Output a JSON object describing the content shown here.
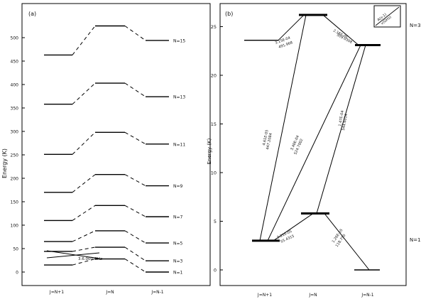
{
  "panel_a": {
    "tag": "(a)",
    "y_title": "Energy (K)",
    "y_ticks": [
      "0",
      "50",
      "100",
      "150",
      "200",
      "250",
      "300",
      "350",
      "400",
      "450",
      "500"
    ],
    "x_ticks": [
      "J=N+1",
      "J=N",
      "J=N-1"
    ],
    "series_labels": [
      "N=15",
      "N=13",
      "N=11",
      "N=9",
      "N=7",
      "N=5",
      "N=3",
      "N=1"
    ],
    "crossing_label": "3.6.000 GHz",
    "levels": [
      {
        "n": "N=15",
        "left": 463,
        "mid": 525,
        "right": 494
      },
      {
        "n": "N=13",
        "left": 358,
        "mid": 403,
        "right": 374
      },
      {
        "n": "N=11",
        "left": 251,
        "mid": 298,
        "right": 273
      },
      {
        "n": "N=9",
        "left": 170,
        "mid": 208,
        "right": 184
      },
      {
        "n": "N=7",
        "left": 110,
        "mid": 142,
        "right": 118
      },
      {
        "n": "N=5",
        "left": 65,
        "mid": 88,
        "right": 62
      },
      {
        "n": "N=3",
        "left": 44,
        "mid": 53,
        "right": 24
      },
      {
        "n": "N=1",
        "left": 15,
        "mid": 28,
        "right": 0
      }
    ]
  },
  "panel_b": {
    "tag": "(b)",
    "y_title": "Energy (K)",
    "y_ticks": [
      "0",
      "5",
      "10",
      "15",
      "20",
      "25"
    ],
    "x_ticks": [
      "J=N+1",
      "J=N",
      "J=N-1"
    ],
    "right_labels": [
      "N=3",
      "N=1"
    ],
    "legend_lines": [
      "A(s-1)",
      "v(GHz)"
    ],
    "levels": {
      "n3_left": 23.6,
      "n3_mid": 26.2,
      "n3_right": 23.1,
      "n1_left": 3.0,
      "n1_mid": 5.8,
      "n1_right": 0
    },
    "transitions": [
      {
        "line1": "3.15E-04",
        "line2": "491.968",
        "label_id": "t1"
      },
      {
        "line1": "4.61E-05",
        "line2": "447.2084",
        "label_id": "t2"
      },
      {
        "line1": "3.40E-04",
        "line2": "524.7002",
        "label_id": "t3"
      },
      {
        "line1": "1.47E-04",
        "line2": "544.6014",
        "label_id": "t4"
      },
      {
        "line1": "2.16E-05",
        "line2": "509.0308",
        "label_id": "t5"
      },
      {
        "line1": "2.21E-05",
        "line2": "55.4315",
        "label_id": "t6"
      },
      {
        "line1": "1.26E-05",
        "line2": "118.750",
        "label_id": "t7"
      }
    ]
  }
}
